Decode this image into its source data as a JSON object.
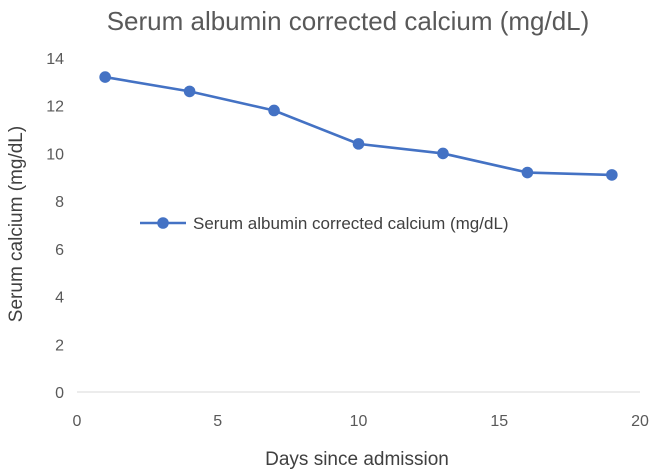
{
  "chart_data": {
    "type": "scatter",
    "title": "Serum albumin corrected calcium (mg/dL)",
    "xlabel": "Days since admission",
    "ylabel": "Serum calcium (mg/dL)",
    "xlim": [
      0,
      20
    ],
    "ylim": [
      0,
      14
    ],
    "xticks": [
      "0",
      "5",
      "10",
      "15",
      "20"
    ],
    "yticks": [
      "0",
      "2",
      "4",
      "6",
      "8",
      "10",
      "12",
      "14"
    ],
    "grid": false,
    "legend_position": "center-left",
    "series": [
      {
        "name": "Serum albumin corrected calcium (mg/dL)",
        "color": "#4472C4",
        "marker": "circle",
        "line": true,
        "x": [
          1,
          4,
          7,
          10,
          13,
          16,
          19
        ],
        "y": [
          13.2,
          12.6,
          11.8,
          10.4,
          10.0,
          9.2,
          9.1
        ]
      }
    ]
  }
}
